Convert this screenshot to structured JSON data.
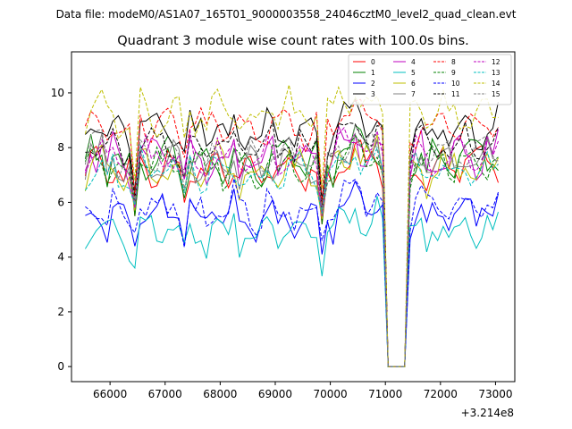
{
  "chart_data": {
    "type": "line",
    "suptitle": "Data file: modeM0/AS1A07_165T01_9000003558_24046cztM0_level2_quad_clean.evt",
    "title": "Quadrant 3 module wise count rates with 100.0s bins.",
    "xlabel": "",
    "ylabel": "",
    "x_offset_label": "+3.214e8",
    "xlim": [
      65300,
      73350
    ],
    "ylim": [
      -0.55,
      11.5
    ],
    "x_ticks": [
      66000,
      67000,
      68000,
      69000,
      70000,
      71000,
      72000,
      73000
    ],
    "x_tick_labels": [
      "66000",
      "67000",
      "68000",
      "69000",
      "70000",
      "71000",
      "72000",
      "73000"
    ],
    "y_ticks": [
      0,
      2,
      4,
      6,
      8,
      10
    ],
    "y_tick_labels": [
      "0",
      "2",
      "4",
      "6",
      "8",
      "10"
    ],
    "x_start": 65550,
    "x_step": 100,
    "gap_points": 3,
    "end_point": 73000,
    "legend_location": "upper right",
    "legend_columns": 4,
    "series": [
      {
        "name": "0",
        "color": "#ff0000",
        "dashed": false,
        "level": 7.2,
        "amp": 0.45,
        "dip": 5.5,
        "end": 7.3,
        "phase": 0.3
      },
      {
        "name": "1",
        "color": "#008000",
        "dashed": false,
        "level": 7.5,
        "amp": 0.5,
        "dip": 5.5,
        "end": 7.4,
        "phase": 1.1
      },
      {
        "name": "2",
        "color": "#0000ff",
        "dashed": false,
        "level": 5.5,
        "amp": 0.4,
        "dip": 4.4,
        "end": 5.5,
        "phase": 2.0
      },
      {
        "name": "3",
        "color": "#000000",
        "dashed": false,
        "level": 8.6,
        "amp": 0.5,
        "dip": 6.4,
        "end": 8.7,
        "phase": 2.7
      },
      {
        "name": "4",
        "color": "#bf00bf",
        "dashed": false,
        "level": 7.6,
        "amp": 0.5,
        "dip": 5.9,
        "end": 7.8,
        "phase": 3.4
      },
      {
        "name": "5",
        "color": "#00bfbf",
        "dashed": false,
        "level": 4.9,
        "amp": 0.35,
        "dip": 3.6,
        "end": 5.0,
        "phase": 4.1
      },
      {
        "name": "6",
        "color": "#bfbf00",
        "dashed": false,
        "level": 7.2,
        "amp": 0.5,
        "dip": 5.7,
        "end": 7.2,
        "phase": 4.9
      },
      {
        "name": "7",
        "color": "#808080",
        "dashed": false,
        "level": 7.4,
        "amp": 0.45,
        "dip": 5.8,
        "end": 7.6,
        "phase": 5.6
      },
      {
        "name": "8",
        "color": "#ff0000",
        "dashed": true,
        "level": 8.7,
        "amp": 0.5,
        "dip": 6.2,
        "end": 8.4,
        "phase": 0.8
      },
      {
        "name": "9",
        "color": "#008000",
        "dashed": true,
        "level": 7.3,
        "amp": 0.45,
        "dip": 5.9,
        "end": 7.5,
        "phase": 1.6
      },
      {
        "name": "10",
        "color": "#0000ff",
        "dashed": true,
        "level": 5.8,
        "amp": 0.4,
        "dip": 4.9,
        "end": 5.8,
        "phase": 2.3
      },
      {
        "name": "11",
        "color": "#000000",
        "dashed": true,
        "level": 8.0,
        "amp": 0.5,
        "dip": 6.1,
        "end": 8.2,
        "phase": 3.0
      },
      {
        "name": "12",
        "color": "#bf00bf",
        "dashed": true,
        "level": 7.6,
        "amp": 0.5,
        "dip": 5.8,
        "end": 7.7,
        "phase": 3.8
      },
      {
        "name": "13",
        "color": "#00bfbf",
        "dashed": true,
        "level": 7.1,
        "amp": 0.45,
        "dip": 5.9,
        "end": 7.2,
        "phase": 4.5
      },
      {
        "name": "14",
        "color": "#bfbf00",
        "dashed": true,
        "level": 9.2,
        "amp": 0.55,
        "dip": 6.8,
        "end": 9.1,
        "phase": 5.2
      },
      {
        "name": "15",
        "color": "#808080",
        "dashed": true,
        "level": 7.7,
        "amp": 0.45,
        "dip": 6.0,
        "end": 7.7,
        "phase": 6.0
      }
    ]
  }
}
